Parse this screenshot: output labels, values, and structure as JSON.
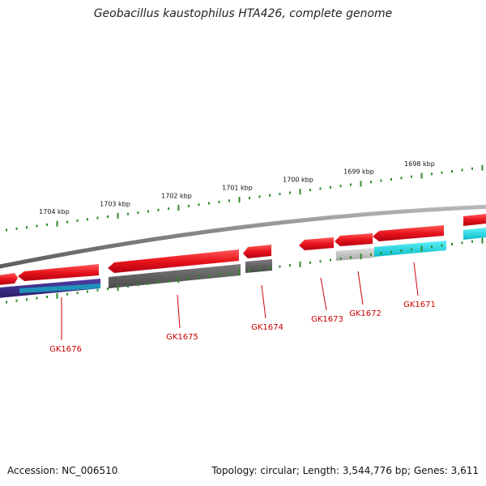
{
  "title": "Geobacillus kaustophilus HTA426, complete genome",
  "footer": {
    "accession": "Accession: NC_006510",
    "summary": "Topology: circular; Length: 3,544,776 bp; Genes: 3,611"
  },
  "ruler": {
    "tick_labels": [
      "1704 kbp",
      "1703 kbp",
      "1702 kbp",
      "1701 kbp",
      "1700 kbp",
      "1699 kbp",
      "1698 kbp"
    ],
    "color": "#2e8b2e"
  },
  "genes": [
    {
      "label": "GK1676",
      "color": "#cc0000"
    },
    {
      "label": "GK1675",
      "color": "#cc0000"
    },
    {
      "label": "GK1674",
      "color": "#cc0000"
    },
    {
      "label": "GK1673",
      "color": "#cc0000"
    },
    {
      "label": "GK1672",
      "color": "#cc0000"
    },
    {
      "label": "GK1671",
      "color": "#cc0000"
    }
  ],
  "colors": {
    "gene_arrow": "#e8141c",
    "backbone": "#808080",
    "band_purple": "#3d2e8a",
    "band_cyan": "#12dce8",
    "band_dark_grey": "#5a5a5a",
    "band_light_grey": "#c4c4c4",
    "label_red": "#cc0000"
  }
}
